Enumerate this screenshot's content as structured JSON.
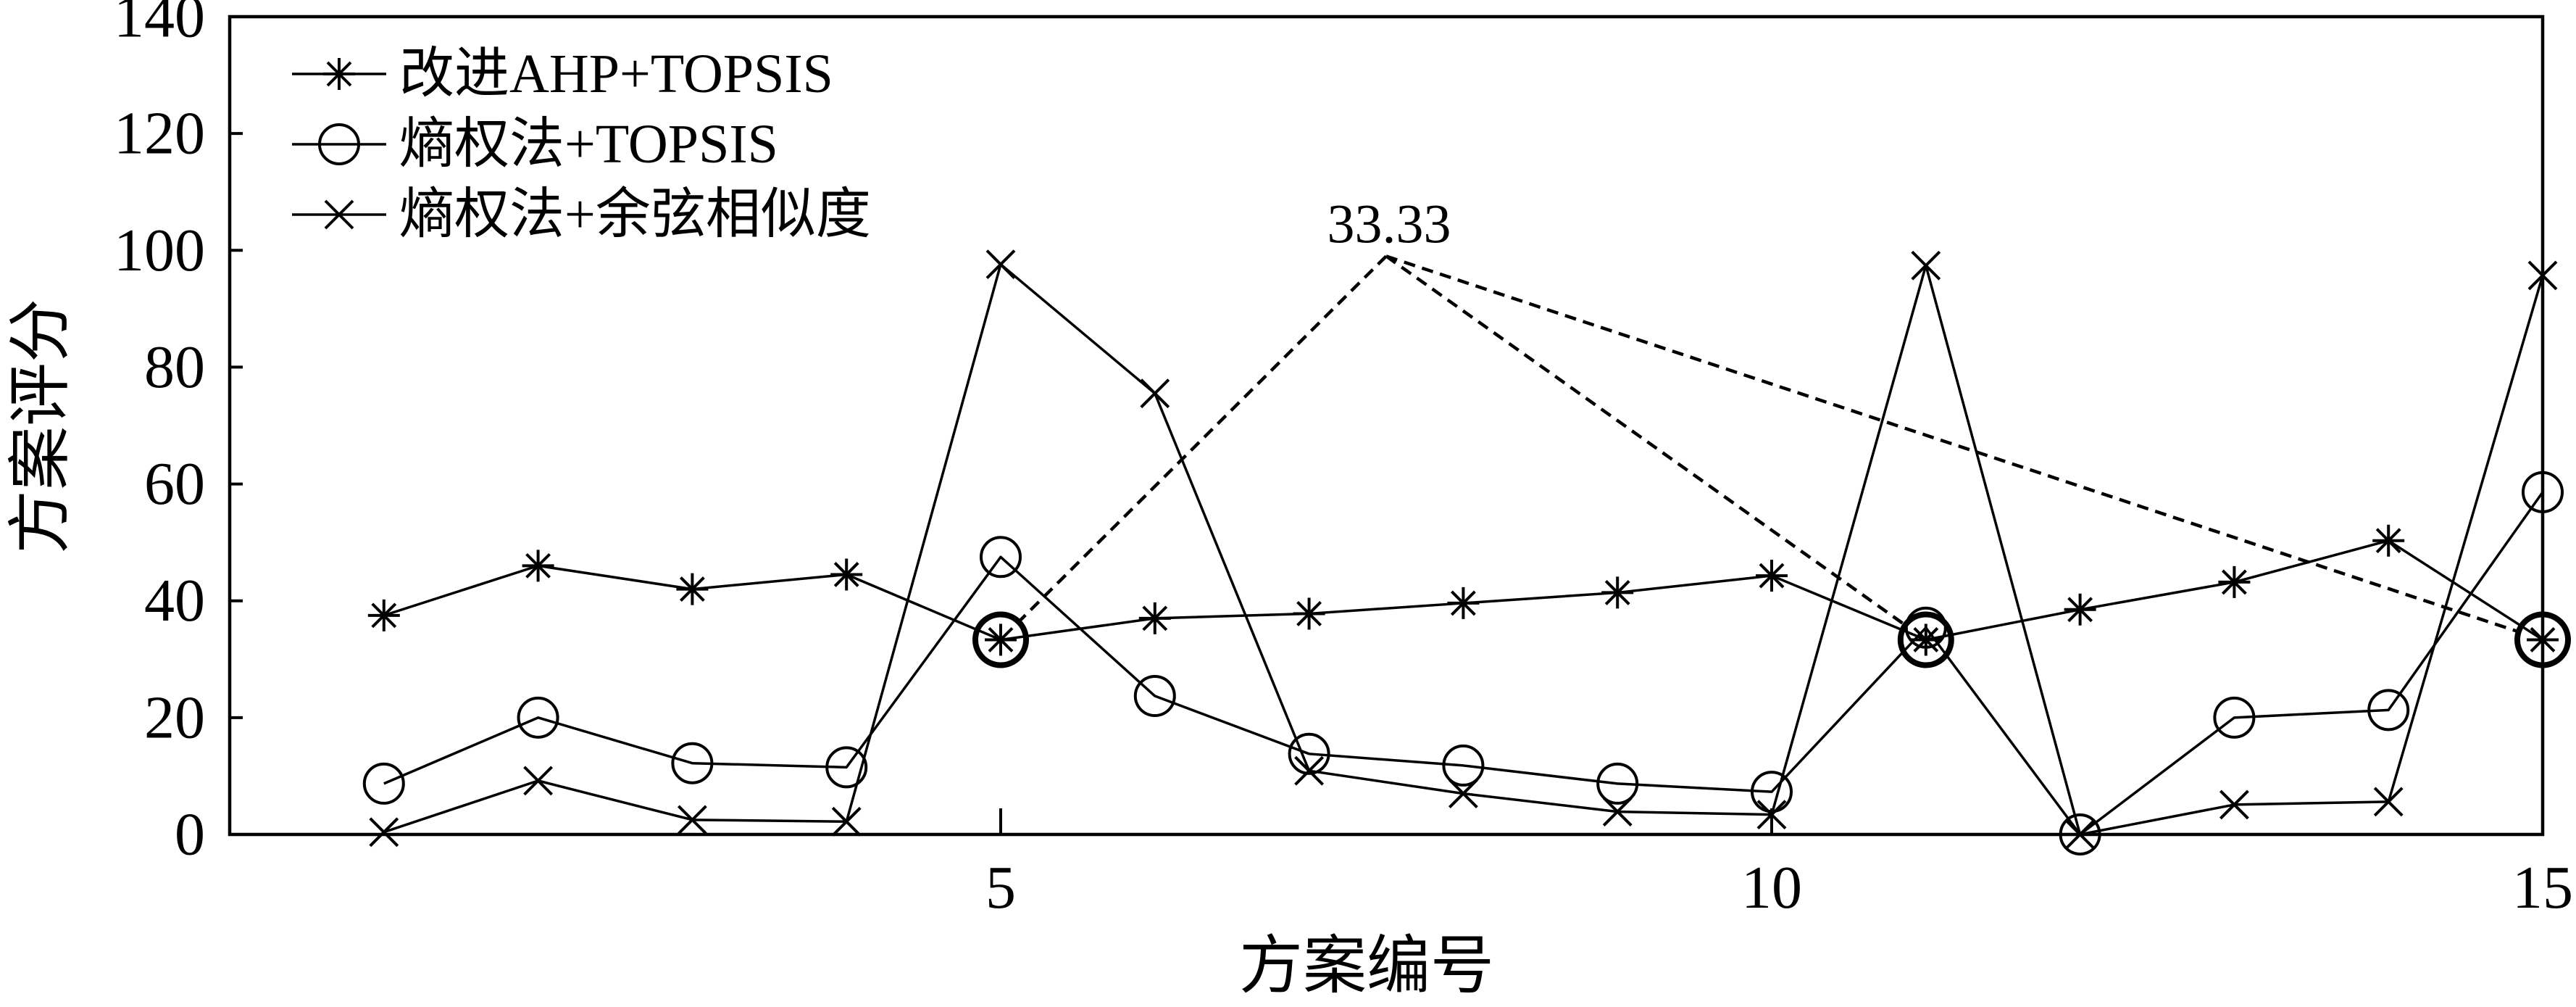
{
  "chart_data": {
    "type": "line",
    "xlabel": "方案编号",
    "ylabel": "方案评分",
    "xlim": [
      0,
      15
    ],
    "ylim": [
      0,
      140
    ],
    "xticks": [
      5,
      10,
      15
    ],
    "yticks": [
      0,
      20,
      40,
      60,
      80,
      100,
      120,
      140
    ],
    "grid": false,
    "legend": "top-left",
    "x": [
      1,
      2,
      3,
      4,
      5,
      6,
      7,
      8,
      9,
      10,
      11,
      12,
      13,
      14,
      15
    ],
    "series": [
      {
        "name": "改进AHP+TOPSIS",
        "marker": "asterisk",
        "color": "#000000",
        "values": [
          37.5,
          46.0,
          42.0,
          44.5,
          33.33,
          37.0,
          37.8,
          39.6,
          41.4,
          44.3,
          33.33,
          38.5,
          43.2,
          50.3,
          33.33
        ]
      },
      {
        "name": "熵权法+TOPSIS",
        "marker": "circle",
        "color": "#000000",
        "values": [
          8.7,
          20.0,
          12.2,
          11.5,
          47.5,
          23.7,
          13.8,
          11.8,
          8.7,
          7.3,
          35.4,
          0.0,
          20.0,
          21.3,
          58.6
        ]
      },
      {
        "name": "熵权法+余弦相似度",
        "marker": "x",
        "color": "#000000",
        "values": [
          0.4,
          9.2,
          2.5,
          2.2,
          97.6,
          75.5,
          10.9,
          7.0,
          3.9,
          3.4,
          97.4,
          0.0,
          5.1,
          5.6,
          95.7
        ]
      }
    ],
    "highlighted_x": [
      5,
      11,
      15
    ],
    "annotation": {
      "text": "33.33",
      "x": 7.5,
      "y": 99,
      "points_to_x": [
        5,
        11,
        15
      ]
    }
  }
}
